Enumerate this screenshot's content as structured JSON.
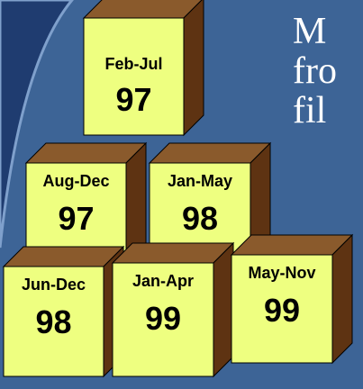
{
  "boxes": [
    {
      "label": "Feb-Jul",
      "year": "97"
    },
    {
      "label": "Aug-Dec",
      "year": "97"
    },
    {
      "label": "Jan-May",
      "year": "98"
    },
    {
      "label": "Jun-Dec",
      "year": "98"
    },
    {
      "label": "Jan-Apr",
      "year": "99"
    },
    {
      "label": "May-Nov",
      "year": "99"
    }
  ],
  "text_lines": [
    "M",
    "fro",
    "fil"
  ]
}
